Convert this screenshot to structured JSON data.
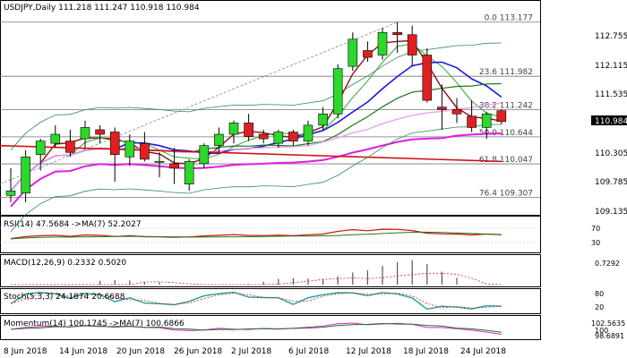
{
  "colors": {
    "up": "#2bd82b",
    "down": "#e02020",
    "wick": "#000000",
    "ma_dark_red": "#8b1010",
    "ma_green": "#1a7a1a",
    "ma_blue": "#1a1ae0",
    "ma_magenta": "#e01ee0",
    "ma_pink": "#f0a0f0",
    "ma_red": "#d01010",
    "ma_green_light": "#2ea82e",
    "bb": "#2e8b57",
    "current_price_bg": "#000000"
  },
  "header": {
    "text": "USDJPY,Daily  111.218 111.247 110.918 110.984"
  },
  "price_panel": {
    "price_axis": [
      "112.755",
      "112.115",
      "111.535",
      "110.984",
      "110.305",
      "109.785",
      "109.135"
    ],
    "current_price": "110.984",
    "fib_levels": [
      {
        "label": "0.0 113.177",
        "price": 113.177
      },
      {
        "label": "23.6 111.982",
        "price": 111.982
      },
      {
        "label": "38.2 111.242",
        "price": 111.242
      },
      {
        "label": "50.0 110.644",
        "price": 110.644
      },
      {
        "label": "61.8 110.047",
        "price": 110.047
      },
      {
        "label": "76.4 109.307",
        "price": 109.307
      }
    ]
  },
  "rsi_panel": {
    "label": "RSI(14) 47.5684 ->MA(7) 52.2027",
    "axis": [
      "70",
      "30"
    ]
  },
  "macd_panel": {
    "label": "MACD(12,26,9) 0.2332 0.5020",
    "axis": [
      "0.7292"
    ]
  },
  "stoch_panel": {
    "label": "Stoch(5,3,3) 24.1874 20.6688",
    "axis": [
      "80",
      "20"
    ]
  },
  "momentum_panel": {
    "label": "Momentum(14) 100.1745 ->MA(7) 100.6866",
    "axis": [
      "102.5635",
      "100",
      "98.6891"
    ]
  },
  "x_axis": [
    "8 Jun 2018",
    "14 Jun 2018",
    "20 Jun 2018",
    "26 Jun 2018",
    "2 Jul 2018",
    "6 Jul 2018",
    "12 Jul 2018",
    "18 Jul 2018",
    "24 Jul 2018"
  ],
  "chart_data": {
    "type": "candlestick",
    "title": "USDJPY,Daily",
    "ylim": [
      109.0,
      113.35
    ],
    "candles": [
      {
        "o": 109.35,
        "h": 109.95,
        "l": 109.2,
        "c": 109.45
      },
      {
        "o": 109.4,
        "h": 110.35,
        "l": 109.2,
        "c": 110.2
      },
      {
        "o": 110.25,
        "h": 110.6,
        "l": 109.9,
        "c": 110.55
      },
      {
        "o": 110.5,
        "h": 110.9,
        "l": 110.4,
        "c": 110.7
      },
      {
        "o": 110.55,
        "h": 110.8,
        "l": 110.2,
        "c": 110.3
      },
      {
        "o": 110.6,
        "h": 111.0,
        "l": 110.4,
        "c": 110.85
      },
      {
        "o": 110.8,
        "h": 110.9,
        "l": 110.5,
        "c": 110.7
      },
      {
        "o": 110.75,
        "h": 110.85,
        "l": 109.65,
        "c": 110.25
      },
      {
        "o": 110.2,
        "h": 110.7,
        "l": 110.0,
        "c": 110.55
      },
      {
        "o": 110.5,
        "h": 110.75,
        "l": 110.1,
        "c": 110.15
      },
      {
        "o": 110.1,
        "h": 110.3,
        "l": 109.75,
        "c": 110.1
      },
      {
        "o": 110.05,
        "h": 110.4,
        "l": 109.6,
        "c": 109.95
      },
      {
        "o": 109.6,
        "h": 110.15,
        "l": 109.45,
        "c": 110.1
      },
      {
        "o": 110.05,
        "h": 110.5,
        "l": 109.95,
        "c": 110.45
      },
      {
        "o": 110.45,
        "h": 110.85,
        "l": 110.3,
        "c": 110.7
      },
      {
        "o": 110.7,
        "h": 111.0,
        "l": 110.5,
        "c": 110.95
      },
      {
        "o": 110.95,
        "h": 111.15,
        "l": 110.55,
        "c": 110.65
      },
      {
        "o": 110.7,
        "h": 110.8,
        "l": 110.5,
        "c": 110.6
      },
      {
        "o": 110.5,
        "h": 110.8,
        "l": 110.4,
        "c": 110.75
      },
      {
        "o": 110.75,
        "h": 110.8,
        "l": 110.45,
        "c": 110.55
      },
      {
        "o": 110.55,
        "h": 111.0,
        "l": 110.45,
        "c": 110.9
      },
      {
        "o": 110.9,
        "h": 111.3,
        "l": 110.8,
        "c": 111.15
      },
      {
        "o": 111.15,
        "h": 112.25,
        "l": 111.05,
        "c": 112.15
      },
      {
        "o": 112.2,
        "h": 112.95,
        "l": 112.1,
        "c": 112.8
      },
      {
        "o": 112.55,
        "h": 112.75,
        "l": 112.3,
        "c": 112.4
      },
      {
        "o": 112.45,
        "h": 113.05,
        "l": 112.35,
        "c": 112.95
      },
      {
        "o": 112.95,
        "h": 113.18,
        "l": 112.5,
        "c": 112.9
      },
      {
        "o": 112.9,
        "h": 113.1,
        "l": 112.2,
        "c": 112.45
      },
      {
        "o": 112.45,
        "h": 112.6,
        "l": 111.4,
        "c": 111.45
      },
      {
        "o": 111.3,
        "h": 111.8,
        "l": 110.8,
        "c": 111.25
      },
      {
        "o": 111.25,
        "h": 111.5,
        "l": 110.95,
        "c": 111.15
      },
      {
        "o": 111.1,
        "h": 111.45,
        "l": 110.75,
        "c": 110.85
      },
      {
        "o": 110.85,
        "h": 111.2,
        "l": 110.6,
        "c": 111.15
      },
      {
        "o": 111.22,
        "h": 111.25,
        "l": 110.92,
        "c": 110.98
      }
    ]
  }
}
